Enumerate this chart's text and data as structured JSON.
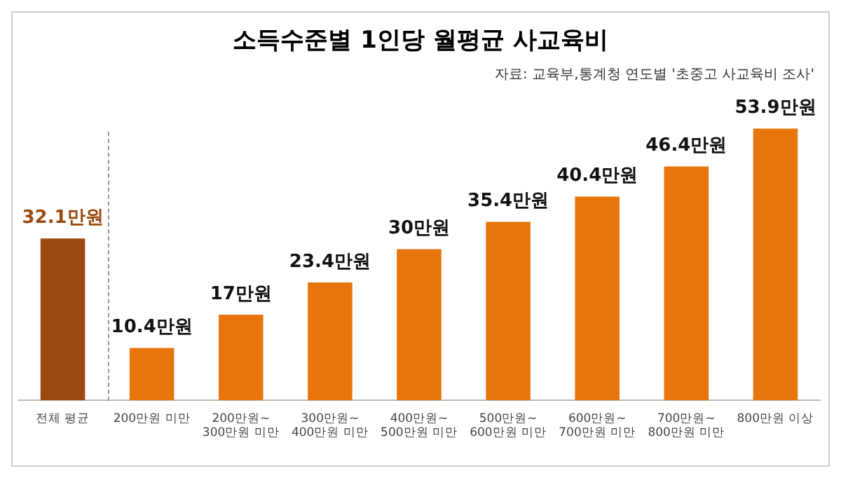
{
  "chart_data": {
    "type": "bar",
    "title": "소득수준별 1인당 월평균 사교육비",
    "annotations": [
      "자료: 교육부,통계청 연도별 '초중고 사교육비 조사'"
    ],
    "categories": [
      "전체 평균",
      "200만원 미만",
      "200만원~300만원 미만",
      "300만원~400만원 미만",
      "400만원~500만원 미만",
      "500만원~600만원 미만",
      "600만원~700만원 미만",
      "700만원~800만원 미만",
      "800만원 이상"
    ],
    "values": [
      32.1,
      10.4,
      17,
      23.4,
      30,
      35.4,
      40.4,
      46.4,
      53.9
    ],
    "colors": [
      "#9a4a0e",
      "#e8740c",
      "#e8740c",
      "#e8740c",
      "#e8740c",
      "#e8740c",
      "#e8740c",
      "#e8740c",
      "#e8740c"
    ],
    "value_labels": [
      "32.1만원",
      "10.4만원",
      "17만원",
      "23.4만원",
      "30만원",
      "35.4만원",
      "40.4만원",
      "46.4만원",
      "53.9만원"
    ],
    "grid": false,
    "legend": false
  }
}
